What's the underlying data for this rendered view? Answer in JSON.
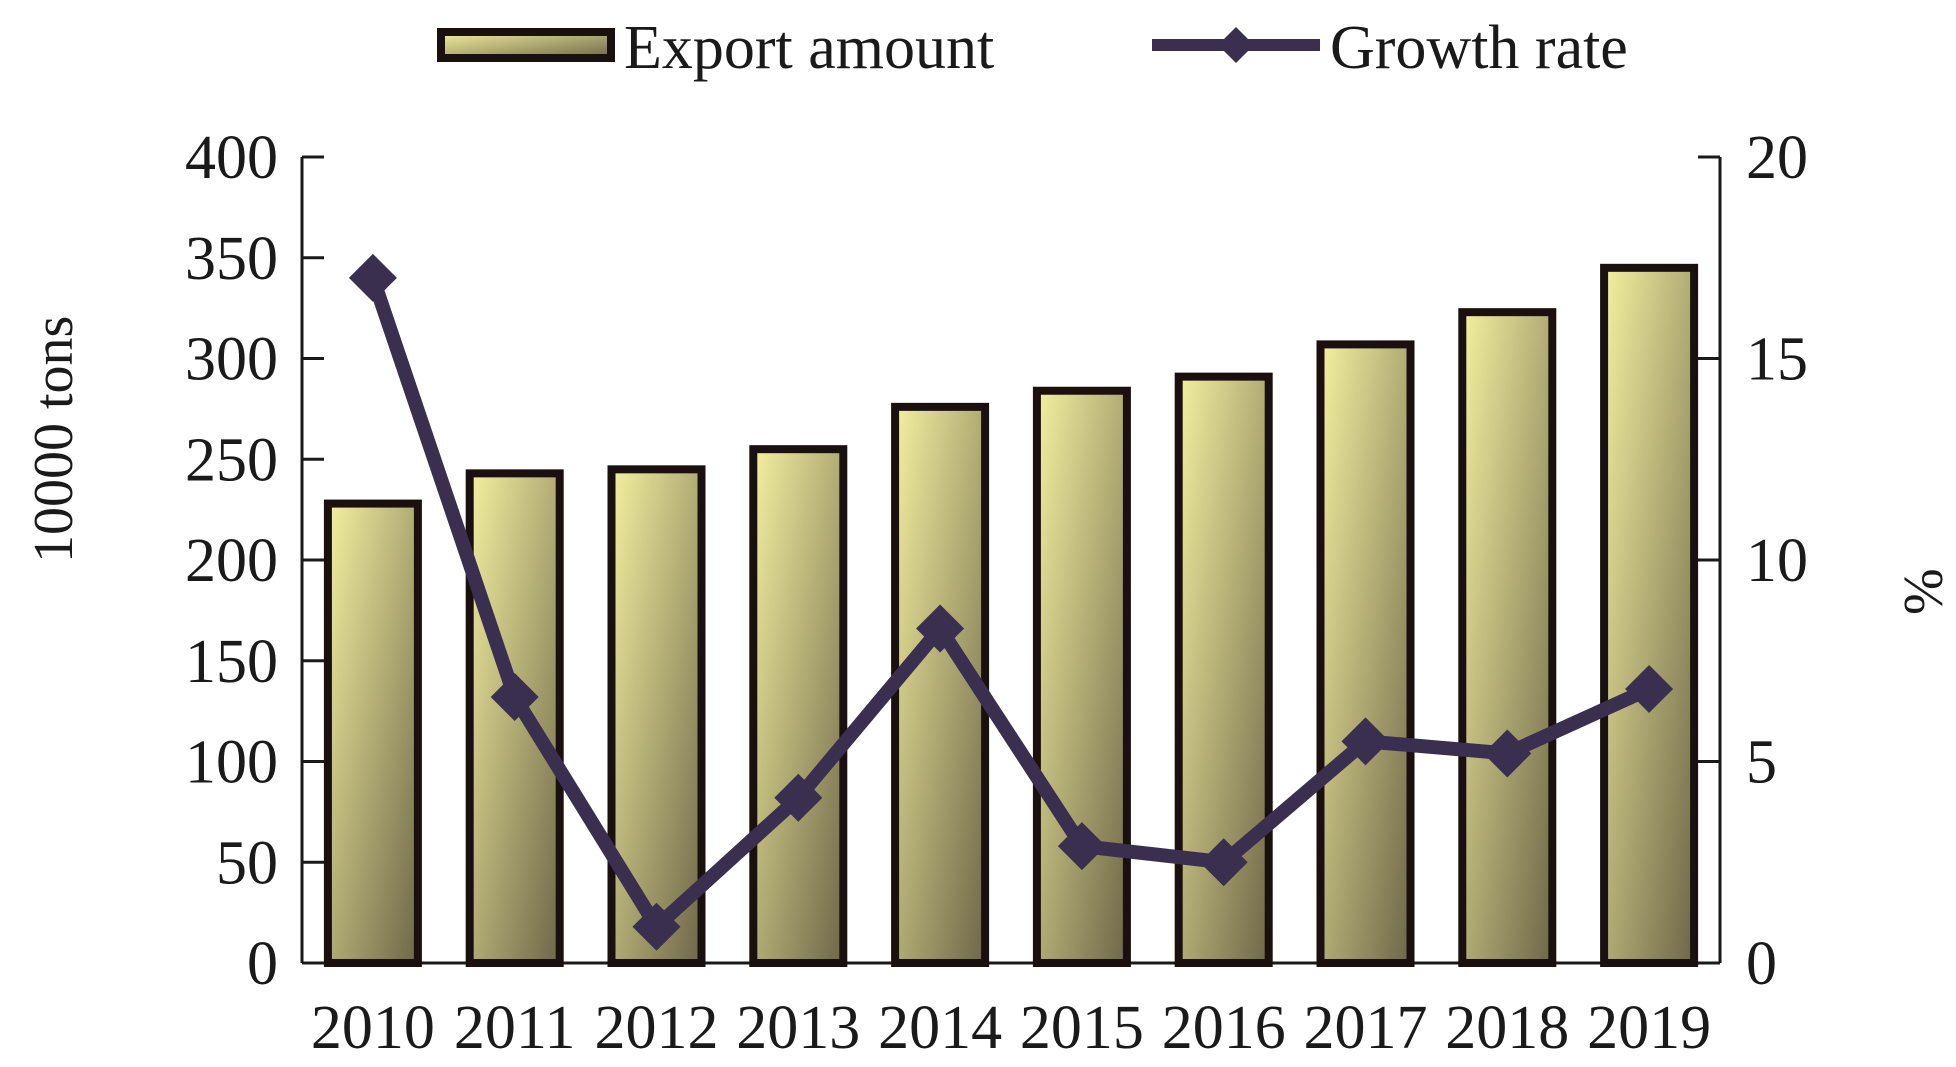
{
  "chart_data": {
    "type": "bar",
    "categories": [
      "2010",
      "2011",
      "2012",
      "2013",
      "2014",
      "2015",
      "2016",
      "2017",
      "2018",
      "2019"
    ],
    "series": [
      {
        "name": "Export amount",
        "type": "bar",
        "axis": "left",
        "values": [
          228,
          243,
          245,
          255,
          276,
          284,
          291,
          307,
          323,
          345
        ]
      },
      {
        "name": "Growth rate",
        "type": "line",
        "axis": "right",
        "values": [
          17.0,
          6.6,
          0.9,
          4.1,
          8.3,
          2.9,
          2.5,
          5.5,
          5.2,
          6.8
        ]
      }
    ],
    "ylabel": "10000 tons",
    "y2label": "%",
    "ylim": [
      0,
      400
    ],
    "y2lim": [
      0,
      20
    ],
    "yticks": [
      "0",
      "50",
      "100",
      "150",
      "200",
      "250",
      "300",
      "350",
      "400"
    ],
    "y2ticks": [
      "0",
      "5",
      "10",
      "15",
      "20"
    ],
    "grid": false,
    "legend_position": "top-center",
    "colors": {
      "bar_light": "#f3f0a0",
      "bar_dark": "#6e6648",
      "bar_outline": "#1a1010",
      "line": "#3b2f4f",
      "axis": "#1a1a1a"
    }
  }
}
